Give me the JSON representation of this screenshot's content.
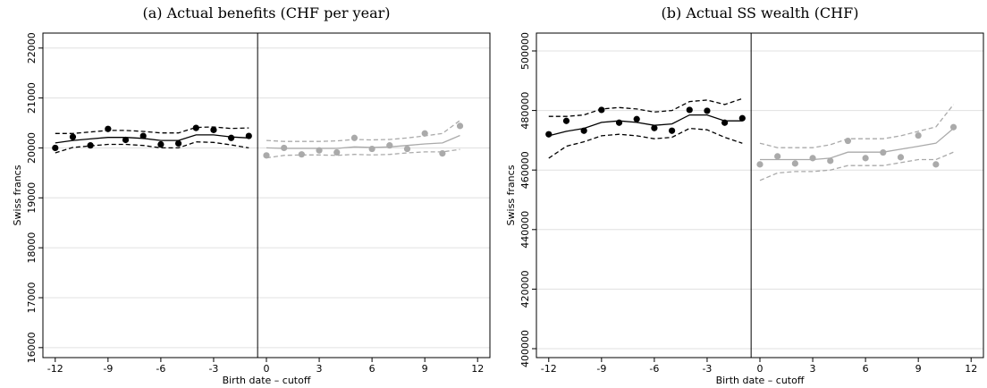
{
  "chart_data": [
    {
      "type": "line",
      "title": "(a) Actual benefits (CHF per year)",
      "xlabel": "Birth date – cutoff",
      "ylabel": "Swiss francs",
      "xlim": [
        -12.7,
        12.7
      ],
      "xticks": [
        -12,
        -9,
        -6,
        -3,
        0,
        3,
        6,
        9,
        12
      ],
      "ylim": [
        15800,
        22300
      ],
      "yticks": [
        16000,
        17000,
        18000,
        19000,
        20000,
        21000,
        22000
      ],
      "grid": true,
      "vline": -0.5,
      "series": [
        {
          "color": "#000000",
          "style": "markers",
          "x": [
            -12,
            -11,
            -10,
            -9,
            -8,
            -7,
            -6,
            -5,
            -4,
            -3,
            -2,
            -1
          ],
          "values": [
            20000,
            20220,
            20050,
            20380,
            20160,
            20240,
            20070,
            20090,
            20400,
            20360,
            20200,
            20240
          ]
        },
        {
          "color": "#000000",
          "style": "solid",
          "x": [
            -12,
            -11,
            -10,
            -9,
            -8,
            -7,
            -6,
            -5,
            -4,
            -3,
            -2,
            -1
          ],
          "values": [
            20100,
            20150,
            20180,
            20210,
            20210,
            20190,
            20150,
            20150,
            20260,
            20260,
            20220,
            20200
          ]
        },
        {
          "color": "#000000",
          "style": "dashed",
          "x": [
            -12,
            -11,
            -10,
            -9,
            -8,
            -7,
            -6,
            -5,
            -4,
            -3,
            -2,
            -1
          ],
          "values": [
            20290,
            20290,
            20320,
            20350,
            20350,
            20330,
            20300,
            20300,
            20410,
            20420,
            20390,
            20400
          ]
        },
        {
          "color": "#000000",
          "style": "dashed",
          "x": [
            -12,
            -11,
            -10,
            -9,
            -8,
            -7,
            -6,
            -5,
            -4,
            -3,
            -2,
            -1
          ],
          "values": [
            19900,
            20010,
            20040,
            20070,
            20070,
            20050,
            20000,
            20000,
            20120,
            20110,
            20060,
            20000
          ]
        },
        {
          "color": "#aaaaaa",
          "style": "markers",
          "x": [
            0,
            1,
            2,
            3,
            4,
            5,
            6,
            7,
            8,
            9,
            10,
            11
          ],
          "values": [
            19850,
            20000,
            19870,
            19950,
            19910,
            20200,
            19980,
            20050,
            19980,
            20290,
            19890,
            20440
          ]
        },
        {
          "color": "#aaaaaa",
          "style": "solid",
          "x": [
            0,
            1,
            2,
            3,
            4,
            5,
            6,
            7,
            8,
            9,
            10,
            11
          ],
          "values": [
            20000,
            19990,
            19990,
            19990,
            19990,
            20020,
            20010,
            20020,
            20050,
            20080,
            20100,
            20250
          ]
        },
        {
          "color": "#aaaaaa",
          "style": "dashed",
          "x": [
            0,
            1,
            2,
            3,
            4,
            5,
            6,
            7,
            8,
            9,
            10,
            11
          ],
          "values": [
            20150,
            20130,
            20130,
            20130,
            20140,
            20170,
            20160,
            20170,
            20200,
            20240,
            20290,
            20550
          ]
        },
        {
          "color": "#aaaaaa",
          "style": "dashed",
          "x": [
            0,
            1,
            2,
            3,
            4,
            5,
            6,
            7,
            8,
            9,
            10,
            11
          ],
          "values": [
            19800,
            19850,
            19860,
            19860,
            19850,
            19870,
            19860,
            19870,
            19900,
            19920,
            19920,
            19970
          ]
        }
      ]
    },
    {
      "type": "line",
      "title": "(b) Actual SS wealth (CHF)",
      "xlabel": "Birth date – cutoff",
      "ylabel": "Swiss francs",
      "xlim": [
        -12.7,
        12.7
      ],
      "xticks": [
        -12,
        -9,
        -6,
        -3,
        0,
        3,
        6,
        9,
        12
      ],
      "ylim": [
        397000,
        506000
      ],
      "yticks": [
        400000,
        420000,
        440000,
        460000,
        480000,
        500000
      ],
      "grid": true,
      "vline": -0.5,
      "series": [
        {
          "color": "#000000",
          "style": "markers",
          "x": [
            -12,
            -11,
            -10,
            -9,
            -8,
            -7,
            -6,
            -5,
            -4,
            -3,
            -2,
            -1
          ],
          "values": [
            472000,
            476500,
            473200,
            480200,
            475900,
            477100,
            474100,
            473200,
            480200,
            479900,
            475900,
            477400
          ]
        },
        {
          "color": "#000000",
          "style": "solid",
          "x": [
            -12,
            -11,
            -10,
            -9,
            -8,
            -7,
            -6,
            -5,
            -4,
            -3,
            -2,
            -1
          ],
          "values": [
            471500,
            473000,
            474000,
            476000,
            476500,
            476000,
            475000,
            475500,
            478500,
            478500,
            476500,
            476500
          ]
        },
        {
          "color": "#000000",
          "style": "dashed",
          "x": [
            -12,
            -11,
            -10,
            -9,
            -8,
            -7,
            -6,
            -5,
            -4,
            -3,
            -2,
            -1
          ],
          "values": [
            478000,
            478000,
            478500,
            480500,
            481000,
            480500,
            479500,
            480000,
            483000,
            483500,
            482000,
            484000
          ]
        },
        {
          "color": "#000000",
          "style": "dashed",
          "x": [
            -12,
            -11,
            -10,
            -9,
            -8,
            -7,
            -6,
            -5,
            -4,
            -3,
            -2,
            -1
          ],
          "values": [
            464000,
            468000,
            469500,
            471500,
            472000,
            471500,
            470500,
            471000,
            474000,
            473500,
            471000,
            469000
          ]
        },
        {
          "color": "#aaaaaa",
          "style": "markers",
          "x": [
            0,
            1,
            2,
            3,
            4,
            5,
            6,
            7,
            8,
            9,
            10,
            11
          ],
          "values": [
            461900,
            464600,
            462200,
            464000,
            463100,
            469800,
            464000,
            465900,
            464300,
            471600,
            461900,
            474400
          ]
        },
        {
          "color": "#aaaaaa",
          "style": "solid",
          "x": [
            0,
            1,
            2,
            3,
            4,
            5,
            6,
            7,
            8,
            9,
            10,
            11
          ],
          "values": [
            463500,
            463500,
            463500,
            463500,
            464000,
            466000,
            466000,
            466000,
            467000,
            468000,
            469000,
            474000
          ]
        },
        {
          "color": "#aaaaaa",
          "style": "dashed",
          "x": [
            0,
            1,
            2,
            3,
            4,
            5,
            6,
            7,
            8,
            9,
            10,
            11
          ],
          "values": [
            469000,
            467500,
            467500,
            467500,
            468500,
            470500,
            470500,
            470500,
            471500,
            473000,
            474500,
            482000
          ]
        },
        {
          "color": "#aaaaaa",
          "style": "dashed",
          "x": [
            0,
            1,
            2,
            3,
            4,
            5,
            6,
            7,
            8,
            9,
            10,
            11
          ],
          "values": [
            456500,
            459000,
            459500,
            459500,
            460000,
            461500,
            461500,
            461500,
            462500,
            463500,
            463500,
            466000
          ]
        }
      ]
    }
  ]
}
